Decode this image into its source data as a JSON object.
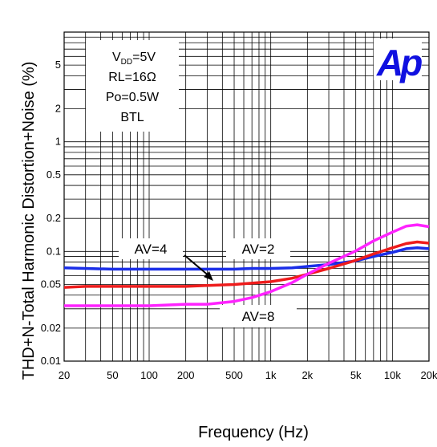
{
  "chart_data": {
    "type": "line",
    "xlabel": "Frequency (Hz)",
    "ylabel": "THD+N-Total Harmonic Distortion+Noise (%)",
    "x_scale": "log",
    "y_scale": "log",
    "xlim": [
      20,
      20000
    ],
    "ylim": [
      0.01,
      10
    ],
    "grid": true,
    "x_ticks": [
      {
        "value": 20,
        "label": "20"
      },
      {
        "value": 50,
        "label": "50"
      },
      {
        "value": 100,
        "label": "100"
      },
      {
        "value": 200,
        "label": "200"
      },
      {
        "value": 500,
        "label": "500"
      },
      {
        "value": 1000,
        "label": "1k"
      },
      {
        "value": 2000,
        "label": "2k"
      },
      {
        "value": 5000,
        "label": "5k"
      },
      {
        "value": 10000,
        "label": "10k"
      },
      {
        "value": 20000,
        "label": "20k"
      }
    ],
    "y_ticks": [
      {
        "value": 0.01,
        "label": "0.01"
      },
      {
        "value": 0.02,
        "label": "0.02"
      },
      {
        "value": 0.05,
        "label": "0.05"
      },
      {
        "value": 0.1,
        "label": "0.1"
      },
      {
        "value": 0.2,
        "label": "0.2"
      },
      {
        "value": 0.5,
        "label": "0.5"
      },
      {
        "value": 1,
        "label": "1"
      },
      {
        "value": 2,
        "label": "2"
      },
      {
        "value": 5,
        "label": "5"
      }
    ],
    "conditions": {
      "vdd_main": "V",
      "vdd_sub": "DD",
      "vdd_value": "=5V",
      "rl": "RL=16Ω",
      "po": "Po=0.5W",
      "mode": "BTL"
    },
    "logo": "Ap",
    "series": [
      {
        "name": "AV=2",
        "color": "#1a2ee8",
        "points": [
          [
            20,
            0.071
          ],
          [
            30,
            0.07
          ],
          [
            50,
            0.069
          ],
          [
            100,
            0.069
          ],
          [
            200,
            0.069
          ],
          [
            500,
            0.069
          ],
          [
            700,
            0.07
          ],
          [
            1000,
            0.07
          ],
          [
            1500,
            0.071
          ],
          [
            2000,
            0.073
          ],
          [
            3000,
            0.076
          ],
          [
            5000,
            0.082
          ],
          [
            7000,
            0.09
          ],
          [
            10000,
            0.098
          ],
          [
            13000,
            0.106
          ],
          [
            16000,
            0.108
          ],
          [
            20000,
            0.106
          ]
        ]
      },
      {
        "name": "AV=4",
        "color": "#ee1c1c",
        "points": [
          [
            20,
            0.047
          ],
          [
            30,
            0.048
          ],
          [
            50,
            0.048
          ],
          [
            100,
            0.048
          ],
          [
            200,
            0.048
          ],
          [
            300,
            0.049
          ],
          [
            500,
            0.05
          ],
          [
            1000,
            0.053
          ],
          [
            1500,
            0.057
          ],
          [
            2000,
            0.062
          ],
          [
            3000,
            0.07
          ],
          [
            5000,
            0.083
          ],
          [
            7000,
            0.095
          ],
          [
            10000,
            0.108
          ],
          [
            13000,
            0.118
          ],
          [
            16000,
            0.122
          ],
          [
            20000,
            0.119
          ]
        ]
      },
      {
        "name": "AV=8",
        "color": "#ff22ff",
        "points": [
          [
            20,
            0.032
          ],
          [
            30,
            0.032
          ],
          [
            50,
            0.032
          ],
          [
            100,
            0.032
          ],
          [
            200,
            0.033
          ],
          [
            300,
            0.033
          ],
          [
            500,
            0.035
          ],
          [
            700,
            0.038
          ],
          [
            1000,
            0.043
          ],
          [
            1500,
            0.052
          ],
          [
            2000,
            0.062
          ],
          [
            3000,
            0.078
          ],
          [
            5000,
            0.101
          ],
          [
            7000,
            0.125
          ],
          [
            10000,
            0.15
          ],
          [
            13000,
            0.17
          ],
          [
            16000,
            0.175
          ],
          [
            20000,
            0.168
          ]
        ]
      }
    ],
    "annotations": [
      {
        "text": "AV=4",
        "series": "AV=4"
      },
      {
        "text": "AV=2",
        "series": "AV=2"
      },
      {
        "text": "AV=8",
        "series": "AV=8"
      }
    ]
  }
}
